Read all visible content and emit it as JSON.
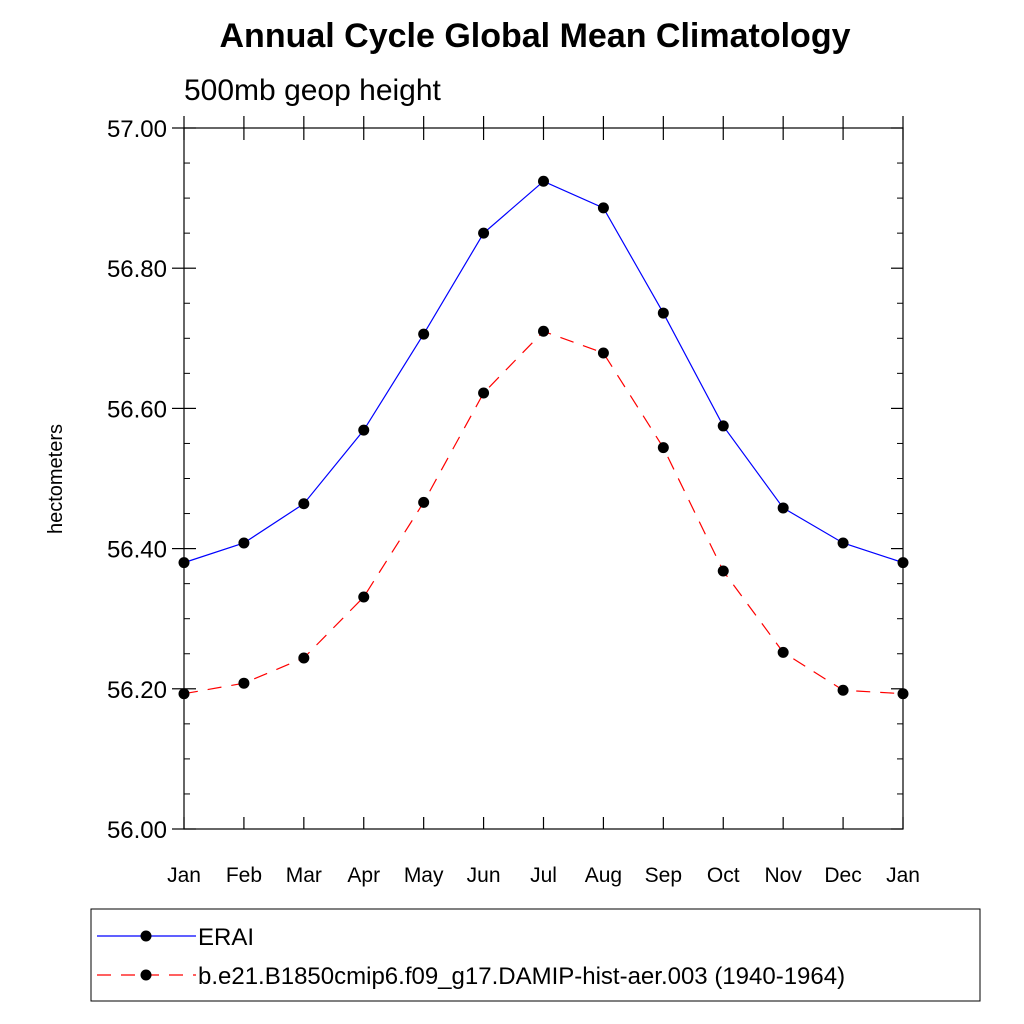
{
  "chart_data": {
    "type": "line",
    "title": "Annual Cycle Global Mean Climatology",
    "subtitle": "500mb geop height",
    "xlabel": "",
    "ylabel": "hectometers",
    "ylim": [
      56.0,
      57.0
    ],
    "yticks": [
      "56.00",
      "56.20",
      "56.40",
      "56.60",
      "56.80",
      "57.00"
    ],
    "categories": [
      "Jan",
      "Feb",
      "Mar",
      "Apr",
      "May",
      "Jun",
      "Jul",
      "Aug",
      "Sep",
      "Oct",
      "Nov",
      "Dec",
      "Jan"
    ],
    "grid": false,
    "legend_position": "bottom",
    "series": [
      {
        "name": "ERAI",
        "color": "#0000ff",
        "dash": "solid",
        "marker": "filled-circle",
        "values": [
          56.38,
          56.408,
          56.464,
          56.569,
          56.706,
          56.85,
          56.924,
          56.886,
          56.736,
          56.575,
          56.458,
          56.408,
          56.38
        ]
      },
      {
        "name": "b.e21.B1850cmip6.f09_g17.DAMIP-hist-aer.003 (1940-1964)",
        "color": "#ff0000",
        "dash": "dashed",
        "marker": "filled-circle",
        "values": [
          56.193,
          56.208,
          56.244,
          56.331,
          56.466,
          56.622,
          56.71,
          56.679,
          56.544,
          56.368,
          56.252,
          56.198,
          56.193
        ]
      }
    ]
  }
}
